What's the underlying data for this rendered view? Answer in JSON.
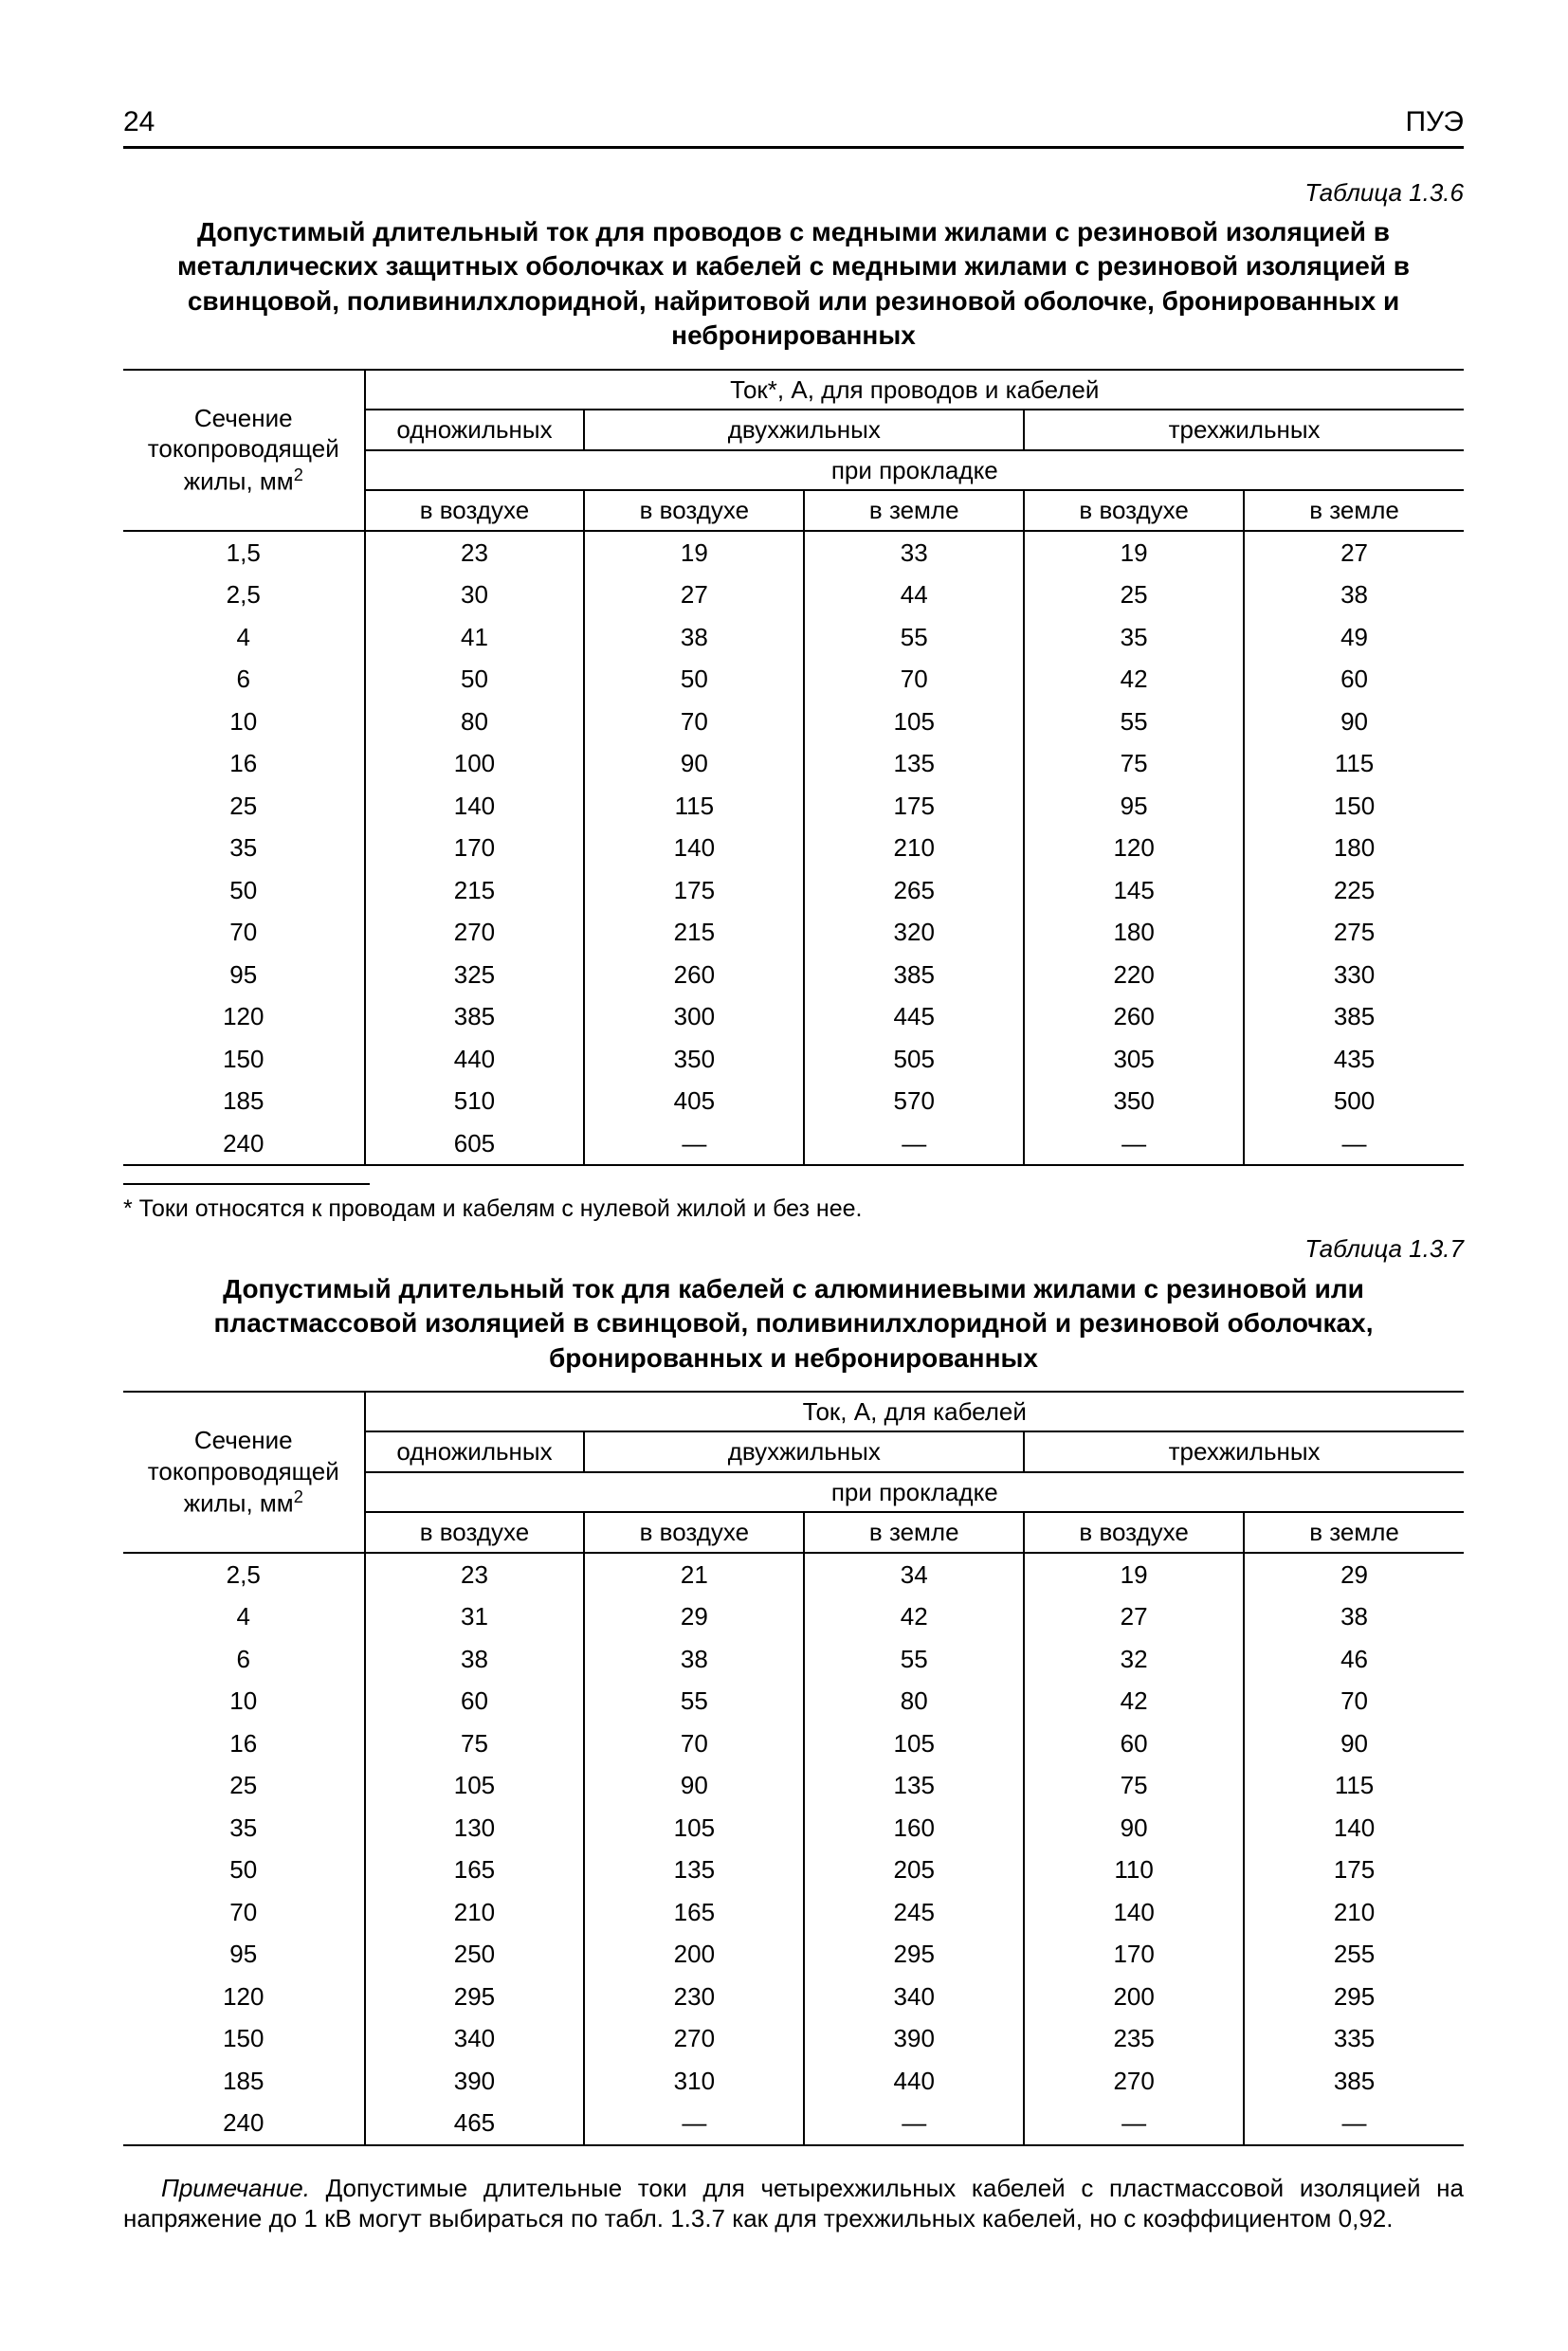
{
  "page": {
    "page_number": "24",
    "doc_abbr": "ПУЭ"
  },
  "table1": {
    "label": "Таблица 1.3.6",
    "caption": "Допустимый длительный ток для проводов с медными жилами с резиновой изоляцией в металлических защитных оболочках и кабелей с медными жилами с резиновой изоляцией в свинцовой, поливинилхлоридной, найритовой или резиновой оболочке, бронированных и небронированных",
    "head": {
      "rowhead_line1": "Сечение токопроводящей",
      "rowhead_line2": "жилы, мм",
      "rowhead_sup": "2",
      "super": "Ток*, А, для проводов и кабелей",
      "g1": "одножильных",
      "g2": "двухжильных",
      "g3": "трехжильных",
      "sub": "при прокладке",
      "c1": "в воздухе",
      "c2": "в воздухе",
      "c3": "в земле",
      "c4": "в воздухе",
      "c5": "в земле"
    },
    "rows": [
      [
        "1,5",
        "23",
        "19",
        "33",
        "19",
        "27"
      ],
      [
        "2,5",
        "30",
        "27",
        "44",
        "25",
        "38"
      ],
      [
        "4",
        "41",
        "38",
        "55",
        "35",
        "49"
      ],
      [
        "6",
        "50",
        "50",
        "70",
        "42",
        "60"
      ],
      [
        "10",
        "80",
        "70",
        "105",
        "55",
        "90"
      ],
      [
        "16",
        "100",
        "90",
        "135",
        "75",
        "115"
      ],
      [
        "25",
        "140",
        "115",
        "175",
        "95",
        "150"
      ],
      [
        "35",
        "170",
        "140",
        "210",
        "120",
        "180"
      ],
      [
        "50",
        "215",
        "175",
        "265",
        "145",
        "225"
      ],
      [
        "70",
        "270",
        "215",
        "320",
        "180",
        "275"
      ],
      [
        "95",
        "325",
        "260",
        "385",
        "220",
        "330"
      ],
      [
        "120",
        "385",
        "300",
        "445",
        "260",
        "385"
      ],
      [
        "150",
        "440",
        "350",
        "505",
        "305",
        "435"
      ],
      [
        "185",
        "510",
        "405",
        "570",
        "350",
        "500"
      ],
      [
        "240",
        "605",
        "—",
        "—",
        "—",
        "—"
      ]
    ],
    "footnote": "* Токи относятся к проводам и кабелям с нулевой жилой и без нее."
  },
  "table2": {
    "label": "Таблица 1.3.7",
    "caption": "Допустимый длительный ток для кабелей с алюминиевыми жилами с резиновой или пластмассовой изоляцией в свинцовой, поливинилхлоридной и резиновой оболочках, бронированных и небронированных",
    "head": {
      "rowhead_line1": "Сечение токопроводящей",
      "rowhead_line2": "жилы, мм",
      "rowhead_sup": "2",
      "super": "Ток, А, для кабелей",
      "g1": "одножильных",
      "g2": "двухжильных",
      "g3": "трехжильных",
      "sub": "при прокладке",
      "c1": "в воздухе",
      "c2": "в воздухе",
      "c3": "в земле",
      "c4": "в воздухе",
      "c5": "в земле"
    },
    "rows": [
      [
        "2,5",
        "23",
        "21",
        "34",
        "19",
        "29"
      ],
      [
        "4",
        "31",
        "29",
        "42",
        "27",
        "38"
      ],
      [
        "6",
        "38",
        "38",
        "55",
        "32",
        "46"
      ],
      [
        "10",
        "60",
        "55",
        "80",
        "42",
        "70"
      ],
      [
        "16",
        "75",
        "70",
        "105",
        "60",
        "90"
      ],
      [
        "25",
        "105",
        "90",
        "135",
        "75",
        "115"
      ],
      [
        "35",
        "130",
        "105",
        "160",
        "90",
        "140"
      ],
      [
        "50",
        "165",
        "135",
        "205",
        "110",
        "175"
      ],
      [
        "70",
        "210",
        "165",
        "245",
        "140",
        "210"
      ],
      [
        "95",
        "250",
        "200",
        "295",
        "170",
        "255"
      ],
      [
        "120",
        "295",
        "230",
        "340",
        "200",
        "295"
      ],
      [
        "150",
        "340",
        "270",
        "390",
        "235",
        "335"
      ],
      [
        "185",
        "390",
        "310",
        "440",
        "270",
        "385"
      ],
      [
        "240",
        "465",
        "—",
        "—",
        "—",
        "—"
      ]
    ],
    "note_label": "Примечание.",
    "note": " Допустимые длительные токи для четырехжильных кабелей с пластмассовой изоляцией на напряжение до 1 кВ могут выбираться по табл. 1.3.7 как для трехжильных кабелей, но с коэффициентом 0,92."
  },
  "layout": {
    "col_widths_pct": [
      18,
      16.4,
      16.4,
      16.4,
      16.4,
      16.4
    ]
  }
}
